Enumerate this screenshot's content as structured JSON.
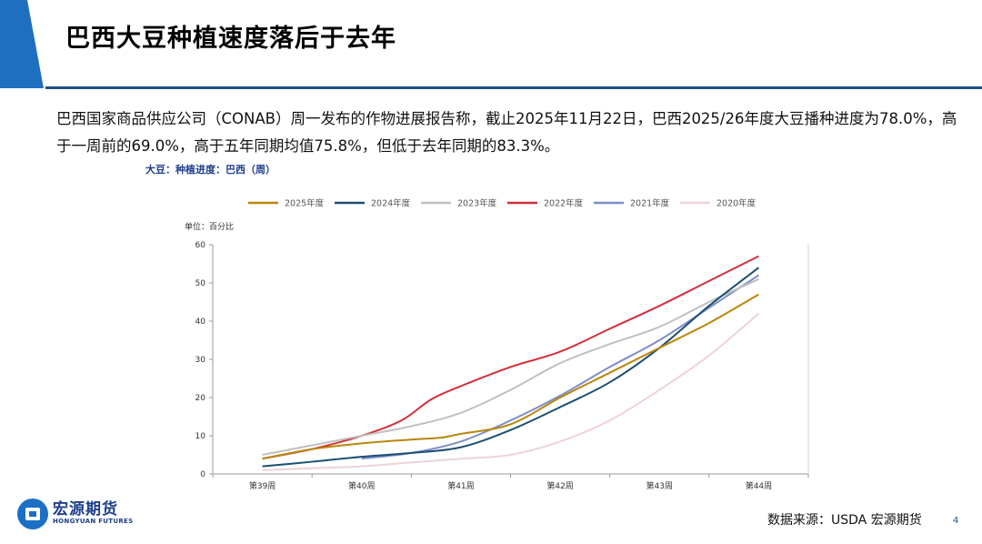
{
  "page": {
    "title": "巴西大豆种植速度落后于去年",
    "body_text": "巴西国家商品供应公司（CONAB）周一发布的作物进展报告称，截止2025年11月22日，巴西2025/26年度大豆播种进度为78.0%，高于一周前的69.0%，高于五年同期均值75.8%，但低于去年同期的83.3%。",
    "chart_caption": "大豆：种植进度：巴西（周）",
    "source": "数据来源：USDA  宏源期货",
    "page_number": "4",
    "logo_cn": "宏源期货",
    "logo_en": "HONGYUAN FUTURES",
    "colors": {
      "accent": "#1e4f8f",
      "title_shape": "#1f6fc0"
    }
  },
  "chart_data": {
    "type": "line",
    "title": "大豆：种植进度：巴西（周）",
    "unit_label": "单位：百分比",
    "xlabel": "",
    "ylabel": "",
    "categories": [
      "第39周",
      "第40周",
      "第41周",
      "第42周",
      "第43周",
      "第44周"
    ],
    "x": [
      39,
      40,
      41,
      42,
      43,
      44
    ],
    "ylim": [
      0,
      60
    ],
    "yticks": [
      0,
      10,
      20,
      30,
      40,
      50,
      60
    ],
    "legend_position": "top",
    "series": [
      {
        "name": "2025年度",
        "color": "#b8860b",
        "points": [
          [
            39,
            4
          ],
          [
            39.5,
            6.5
          ],
          [
            40,
            8
          ],
          [
            40.5,
            9
          ],
          [
            40.8,
            9.5
          ],
          [
            41,
            10.5
          ],
          [
            41.5,
            13
          ],
          [
            42,
            20
          ],
          [
            42.5,
            26.5
          ],
          [
            43,
            33
          ],
          [
            43.5,
            39.5
          ],
          [
            44,
            47
          ]
        ]
      },
      {
        "name": "2024年度",
        "color": "#1b4f72",
        "points": [
          [
            39,
            2
          ],
          [
            39.5,
            3.2
          ],
          [
            40,
            4.5
          ],
          [
            40.5,
            5.5
          ],
          [
            41,
            7
          ],
          [
            41.5,
            11.5
          ],
          [
            42,
            17.5
          ],
          [
            42.5,
            24
          ],
          [
            43,
            33
          ],
          [
            43.5,
            44
          ],
          [
            44,
            54
          ]
        ]
      },
      {
        "name": "2023年度",
        "color": "#c0c0c0",
        "points": [
          [
            39,
            5
          ],
          [
            39.5,
            7.5
          ],
          [
            40,
            10
          ],
          [
            40.5,
            12.5
          ],
          [
            41,
            16
          ],
          [
            41.5,
            22
          ],
          [
            42,
            29
          ],
          [
            42.5,
            34
          ],
          [
            43,
            38.5
          ],
          [
            43.5,
            45
          ],
          [
            44,
            51
          ]
        ]
      },
      {
        "name": "2022年度",
        "color": "#d0303a",
        "points": [
          [
            39,
            4
          ],
          [
            39.5,
            6.5
          ],
          [
            40,
            10
          ],
          [
            40.4,
            14
          ],
          [
            40.7,
            19.5
          ],
          [
            41,
            23
          ],
          [
            41.5,
            28
          ],
          [
            42,
            32
          ],
          [
            42.5,
            38
          ],
          [
            43,
            44
          ],
          [
            43.5,
            50.5
          ],
          [
            44,
            57
          ]
        ]
      },
      {
        "name": "2021年度",
        "color": "#7d8ec9",
        "points": [
          [
            40,
            4
          ],
          [
            40.5,
            5.5
          ],
          [
            41,
            8.5
          ],
          [
            41.5,
            14
          ],
          [
            42,
            20.5
          ],
          [
            42.5,
            28
          ],
          [
            43,
            35
          ],
          [
            43.5,
            43.5
          ],
          [
            44,
            52
          ]
        ]
      },
      {
        "name": "2020年度",
        "color": "#ecd3d8",
        "points": [
          [
            39,
            1
          ],
          [
            39.5,
            1.5
          ],
          [
            40,
            2
          ],
          [
            40.5,
            3
          ],
          [
            41,
            4
          ],
          [
            41.5,
            5
          ],
          [
            42,
            8.5
          ],
          [
            42.5,
            14
          ],
          [
            43,
            22
          ],
          [
            43.5,
            31
          ],
          [
            44,
            42
          ]
        ]
      }
    ]
  }
}
